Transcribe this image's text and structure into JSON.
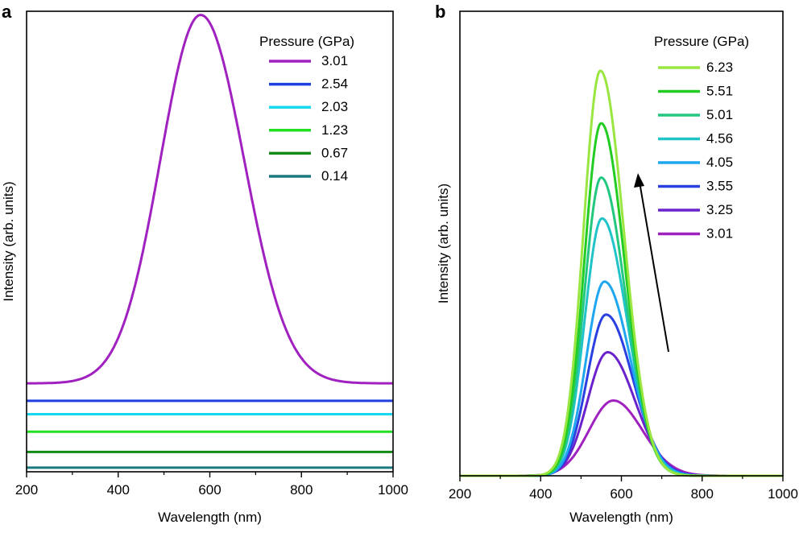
{
  "chart_data": [
    {
      "panel": "a",
      "type": "line",
      "xlabel": "Wavelength (nm)",
      "ylabel": "Intensity (arb. units)",
      "xlim": [
        200,
        1000
      ],
      "xticks": [
        200,
        400,
        600,
        800,
        1000
      ],
      "ylim": [
        0,
        1
      ],
      "legend_title": "Pressure (GPa)",
      "legend_position": "top-right",
      "series": [
        {
          "name": "3.01",
          "color": "#a020c0",
          "baseline": 0.192,
          "peak": 0.992,
          "center": 580,
          "width_left": 88,
          "width_right": 95
        },
        {
          "name": "2.54",
          "color": "#1f3fe0",
          "baseline": 0.154,
          "peak": 0,
          "center": 580,
          "width_left": 90,
          "width_right": 90
        },
        {
          "name": "2.03",
          "color": "#18d8f0",
          "baseline": 0.125,
          "peak": 0,
          "center": 580,
          "width_left": 90,
          "width_right": 90
        },
        {
          "name": "1.23",
          "color": "#22e022",
          "baseline": 0.087,
          "peak": 0,
          "center": 580,
          "width_left": 90,
          "width_right": 90
        },
        {
          "name": "0.67",
          "color": "#138a13",
          "baseline": 0.043,
          "peak": 0,
          "center": 580,
          "width_left": 90,
          "width_right": 90
        },
        {
          "name": "0.14",
          "color": "#1a7a80",
          "baseline": 0.009,
          "peak": 0,
          "center": 580,
          "width_left": 90,
          "width_right": 90
        }
      ]
    },
    {
      "panel": "b",
      "type": "line",
      "xlabel": "Wavelength (nm)",
      "ylabel": "Intensity (arb. units)",
      "xlim": [
        200,
        1000
      ],
      "xticks": [
        200,
        400,
        600,
        800,
        1000
      ],
      "ylim": [
        0,
        1
      ],
      "legend_title": "Pressure (GPa)",
      "legend_position": "top-right",
      "annotation": "arrow indicating increasing pressure",
      "series": [
        {
          "name": "6.23",
          "color": "#9ae640",
          "baseline": 0.0,
          "peak": 0.872,
          "center": 548,
          "width_left": 42,
          "width_right": 58
        },
        {
          "name": "5.51",
          "color": "#22cc22",
          "baseline": 0.0,
          "peak": 0.759,
          "center": 550,
          "width_left": 42,
          "width_right": 58
        },
        {
          "name": "5.01",
          "color": "#22c880",
          "baseline": 0.0,
          "peak": 0.642,
          "center": 550,
          "width_left": 42,
          "width_right": 60
        },
        {
          "name": "4.56",
          "color": "#20c4c8",
          "baseline": 0.0,
          "peak": 0.554,
          "center": 552,
          "width_left": 43,
          "width_right": 62
        },
        {
          "name": "4.05",
          "color": "#1ea6f0",
          "baseline": 0.0,
          "peak": 0.418,
          "center": 558,
          "width_left": 45,
          "width_right": 64
        },
        {
          "name": "3.55",
          "color": "#2a40e0",
          "baseline": 0.0,
          "peak": 0.347,
          "center": 562,
          "width_left": 47,
          "width_right": 66
        },
        {
          "name": "3.25",
          "color": "#6a22cc",
          "baseline": 0.0,
          "peak": 0.266,
          "center": 566,
          "width_left": 50,
          "width_right": 68
        },
        {
          "name": "3.01",
          "color": "#a020c0",
          "baseline": 0.0,
          "peak": 0.162,
          "center": 580,
          "width_left": 60,
          "width_right": 72
        }
      ]
    }
  ]
}
